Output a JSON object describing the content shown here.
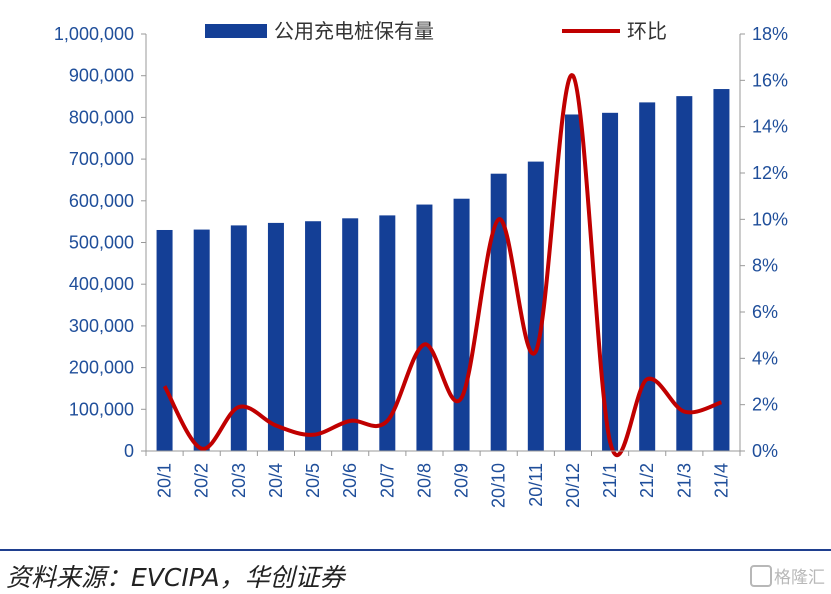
{
  "chart_data": {
    "type": "bar+line",
    "categories": [
      "20/1",
      "20/2",
      "20/3",
      "20/4",
      "20/5",
      "20/6",
      "20/7",
      "20/8",
      "20/9",
      "20/10",
      "20/11",
      "20/12",
      "21/1",
      "21/2",
      "21/3",
      "21/4"
    ],
    "series": [
      {
        "name": "公用充电桩保有量",
        "type": "bar",
        "axis": "left",
        "color": "#143f96",
        "values": [
          530000,
          531000,
          541000,
          547000,
          551000,
          558000,
          565000,
          591000,
          605000,
          665000,
          694000,
          807000,
          811000,
          836000,
          851000,
          868000
        ]
      },
      {
        "name": "环比",
        "type": "line",
        "axis": "right",
        "color": "#c00000",
        "values": [
          2.8,
          0.1,
          1.9,
          1.1,
          0.7,
          1.3,
          1.3,
          4.6,
          2.3,
          10.0,
          4.3,
          16.2,
          0.4,
          3.1,
          1.7,
          2.1
        ]
      }
    ],
    "y_left": {
      "min": 0,
      "max": 1000000,
      "ticks": [
        "0",
        "100,000",
        "200,000",
        "300,000",
        "400,000",
        "500,000",
        "600,000",
        "700,000",
        "800,000",
        "900,000",
        "1,000,000"
      ]
    },
    "y_right": {
      "min": 0,
      "max": 18,
      "ticks": [
        "0%",
        "2%",
        "4%",
        "6%",
        "8%",
        "10%",
        "12%",
        "14%",
        "16%",
        "18%"
      ]
    },
    "legend_placement": "top",
    "grid": false
  },
  "source_text": "资料来源：EVCIPA，华创证券",
  "watermark_text": "格隆汇"
}
